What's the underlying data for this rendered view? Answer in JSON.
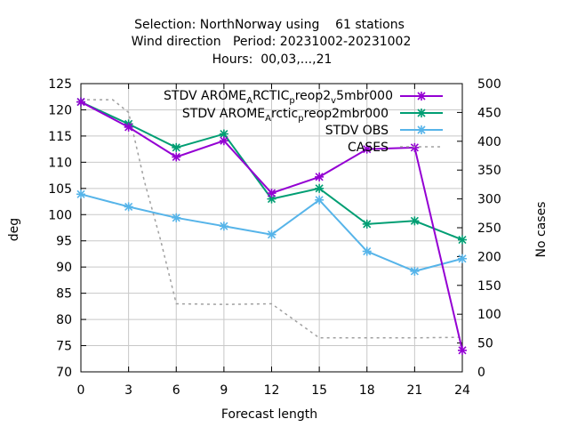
{
  "chart_data": {
    "type": "line",
    "title_lines": [
      "Selection: NorthNorway using    61 stations",
      "Wind direction   Period: 20231002-20231002",
      "Hours:  00,03,...,21"
    ],
    "xlabel": "Forecast length",
    "ylabel": "deg",
    "y2label": "No cases",
    "x": [
      0,
      3,
      6,
      9,
      12,
      15,
      18,
      21,
      24
    ],
    "xlim": [
      0,
      24
    ],
    "ylim": [
      70,
      125
    ],
    "y2lim": [
      0,
      500
    ],
    "x_ticks": [
      0,
      3,
      6,
      9,
      12,
      15,
      18,
      21,
      24
    ],
    "y_ticks": [
      70,
      75,
      80,
      85,
      90,
      95,
      100,
      105,
      110,
      115,
      120,
      125
    ],
    "y2_ticks": [
      0,
      50,
      100,
      150,
      200,
      250,
      300,
      350,
      400,
      450,
      500
    ],
    "grid": true,
    "legend_position": "top-right",
    "series": [
      {
        "name_parts": [
          "STDV AROME",
          "A",
          "RCTIC",
          "p",
          "reop2",
          "v",
          "5mbr000"
        ],
        "color": "#9400d3",
        "axis": "y",
        "values": [
          121.5,
          116.7,
          111.0,
          114.1,
          104.1,
          107.2,
          112.5,
          112.8,
          74.1
        ]
      },
      {
        "name_parts": [
          "STDV AROME",
          "A",
          "rctic",
          "p",
          "reop2mbr000"
        ],
        "color": "#009e73",
        "axis": "y",
        "values": [
          121.5,
          117.3,
          112.8,
          115.4,
          103.0,
          105.0,
          98.2,
          98.8,
          95.2
        ]
      },
      {
        "name": "STDV OBS",
        "color": "#56b4e9",
        "axis": "y",
        "values": [
          103.9,
          101.5,
          99.4,
          97.8,
          96.2,
          102.8,
          93.0,
          89.2,
          91.6
        ]
      },
      {
        "name": "CASES",
        "color": "#a0a0a0",
        "axis": "y2",
        "dashed": true,
        "x": [
          0,
          2,
          3,
          4,
          5,
          6,
          9,
          12,
          15,
          18,
          21,
          24
        ],
        "values": [
          472,
          472,
          450,
          330,
          230,
          118,
          117,
          118,
          59,
          59,
          59,
          60
        ]
      }
    ]
  }
}
